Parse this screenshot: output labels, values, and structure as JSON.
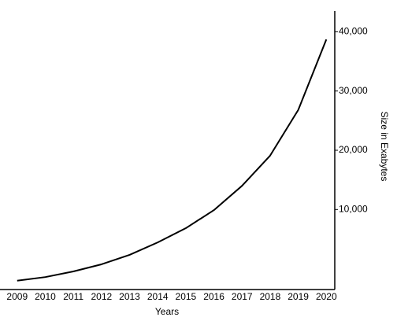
{
  "chart_data": {
    "type": "line",
    "x": [
      2009,
      2010,
      2011,
      2012,
      2013,
      2014,
      2015,
      2016,
      2017,
      2018,
      2019,
      2020
    ],
    "series": [
      {
        "color": "#000000",
        "values": [
          -2000,
          -1400,
          -450,
          750,
          2350,
          4450,
          6850,
          9900,
          14000,
          19100,
          26800,
          38700
        ]
      }
    ],
    "xlabel": "Years",
    "ylabel": "Size in Exabytes",
    "xlim": [
      2008.95,
      2020.3
    ],
    "xticks": [
      2009,
      2010,
      2011,
      2012,
      2013,
      2014,
      2015,
      2016,
      2017,
      2018,
      2019,
      2020
    ],
    "ylim": [
      -3500,
      43500
    ],
    "yticks": [
      {
        "value": 10000,
        "label": "10,000"
      },
      {
        "value": 20000,
        "label": "20,000"
      },
      {
        "value": 30000,
        "label": "30,000"
      },
      {
        "value": 40000,
        "label": "40,000"
      }
    ]
  }
}
